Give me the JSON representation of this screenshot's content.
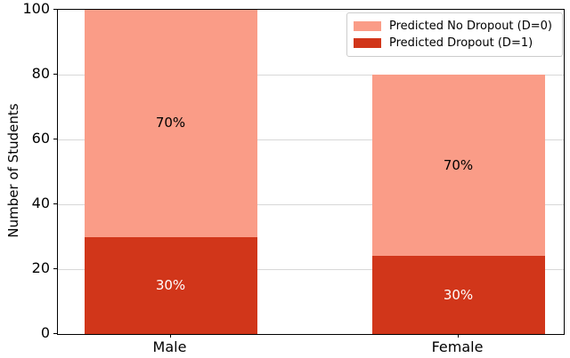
{
  "chart_data": {
    "type": "bar",
    "stacked": true,
    "title": "",
    "xlabel": "",
    "ylabel": "Number of Students",
    "categories": [
      "Male",
      "Female"
    ],
    "series": [
      {
        "name": "Predicted Dropout (D=1)",
        "color": "#d1361a",
        "values": [
          30,
          24
        ],
        "segment_labels": [
          "30%",
          "30%"
        ],
        "label_color": "#ffffff"
      },
      {
        "name": "Predicted No Dropout (D=0)",
        "color": "#fa9c87",
        "values": [
          70,
          56
        ],
        "segment_labels": [
          "70%",
          "70%"
        ],
        "label_color": "#000000"
      }
    ],
    "totals": [
      100,
      80
    ],
    "yticks": [
      0,
      20,
      40,
      60,
      80,
      100
    ],
    "ylim": [
      0,
      100
    ],
    "grid": "horizontal",
    "grid_color": "#d8d8d8",
    "axis_color": "#000000",
    "background": "#ffffff",
    "legend": {
      "position": "upper right",
      "entries": [
        {
          "label": "Predicted No Dropout (D=0)",
          "color": "#fa9c87"
        },
        {
          "label": "Predicted Dropout (D=1)",
          "color": "#d1361a"
        }
      ]
    }
  }
}
